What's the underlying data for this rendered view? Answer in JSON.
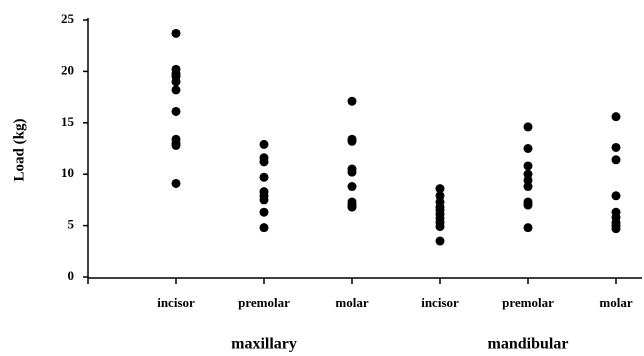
{
  "chart_data": {
    "type": "strip",
    "y_label": "Load (kg)",
    "categories": [
      "incisor",
      "premolar",
      "molar",
      "incisor",
      "premolar",
      "molar"
    ],
    "groups": [
      "maxillary",
      "mandibular"
    ],
    "values": [
      [
        23.7,
        20.2,
        19.8,
        19.5,
        19.0,
        18.2,
        16.1,
        13.4,
        13.0,
        12.8,
        9.1
      ],
      [
        12.9,
        11.6,
        11.2,
        9.7,
        8.3,
        7.9,
        7.5,
        6.3,
        4.8
      ],
      [
        17.1,
        13.4,
        13.2,
        10.5,
        10.2,
        8.8,
        7.3,
        7.0,
        6.8
      ],
      [
        8.6,
        7.9,
        7.3,
        6.8,
        6.5,
        6.1,
        5.7,
        5.3,
        4.9,
        3.5
      ],
      [
        14.6,
        12.5,
        10.8,
        10.0,
        9.4,
        8.8,
        7.3,
        7.0,
        4.8
      ],
      [
        15.6,
        12.6,
        11.4,
        7.9,
        6.3,
        5.8,
        5.3,
        5.0,
        4.7
      ]
    ],
    "color": "#000000",
    "ylim": [
      0,
      25
    ],
    "yticks": [
      0,
      5,
      10,
      15,
      20,
      25
    ]
  }
}
